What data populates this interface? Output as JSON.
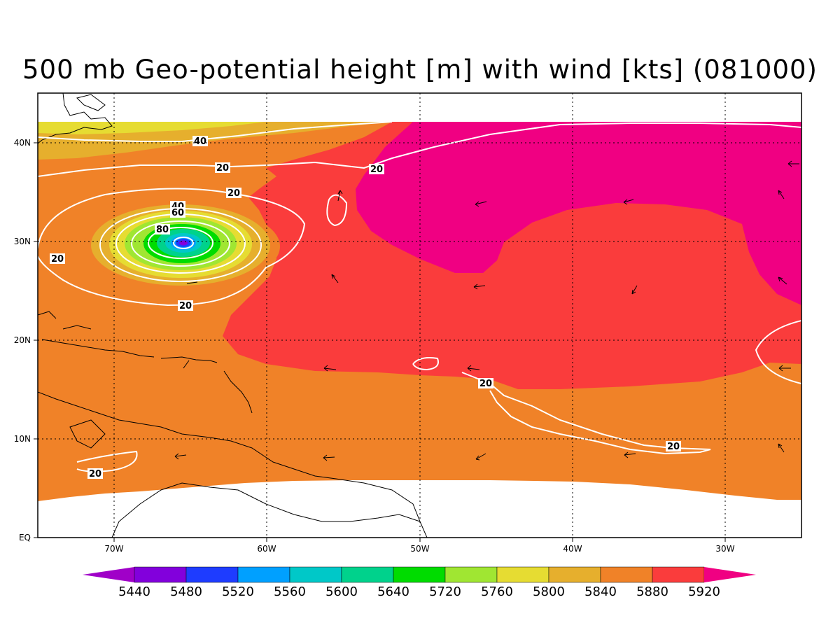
{
  "title": "500 mb Geo-potential height [m] with wind [kts] (081000)",
  "map": {
    "lat_labels": [
      "40N",
      "30N",
      "20N",
      "10N",
      "EQ"
    ],
    "lon_labels": [
      "70W",
      "60W",
      "50W",
      "40W",
      "30W"
    ],
    "contour_labels": {
      "c20_a": "20",
      "c20_b": "20",
      "c20_c": "20",
      "c20_d": "20",
      "c20_e": "20",
      "c20_f": "20",
      "c20_g": "20",
      "c20_h": "20",
      "c40_a": "40",
      "c40_b": "40",
      "c60": "60",
      "c80": "80"
    }
  },
  "colorbar": {
    "colors": [
      "#a000c8",
      "#8200dc",
      "#1e3cff",
      "#00a0ff",
      "#00c8c8",
      "#00d28c",
      "#00dc00",
      "#a0e632",
      "#e6dc32",
      "#e6af2d",
      "#f08228",
      "#fa3c3c",
      "#f00082"
    ],
    "labels": [
      "5440",
      "5480",
      "5520",
      "5560",
      "5600",
      "5640",
      "5720",
      "5760",
      "5800",
      "5840",
      "5880",
      "5920"
    ]
  }
}
